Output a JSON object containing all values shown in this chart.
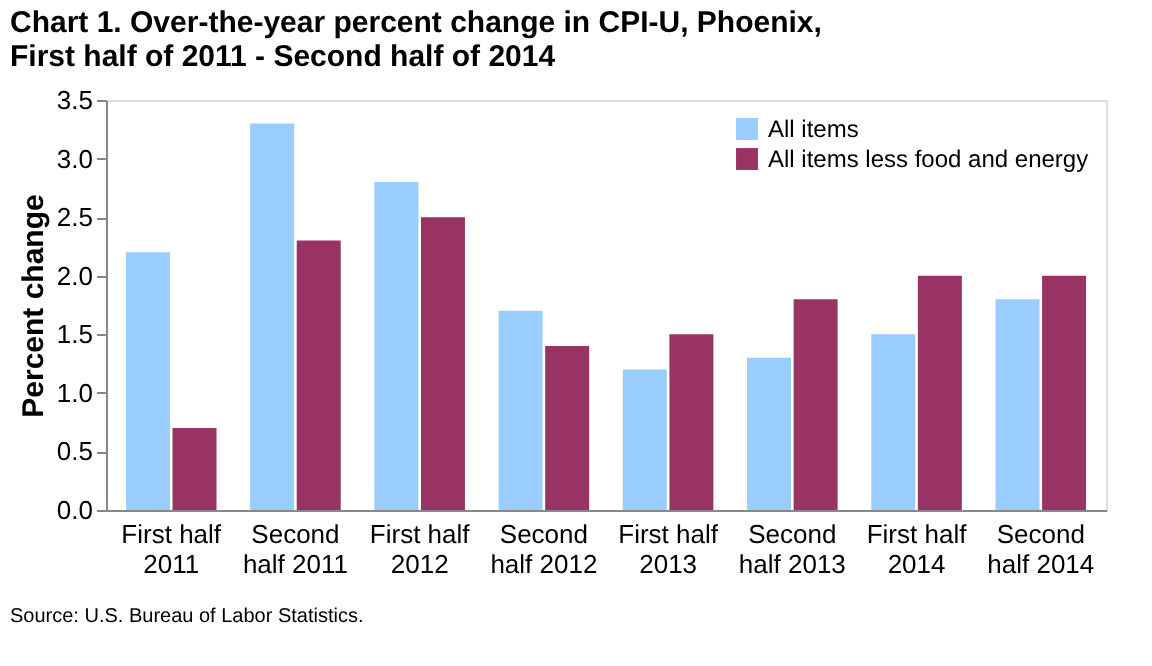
{
  "chart_data": {
    "type": "bar",
    "title": "Chart 1.  Over-the-year percent change in CPI-U, Phoenix,\nFirst half of 2011 - Second half of 2014",
    "ylabel": "Percent change",
    "categories": [
      "First half\n2011",
      "Second\nhalf 2011",
      "First half\n2012",
      "Second\nhalf 2012",
      "First half\n2013",
      "Second\nhalf 2013",
      "First half\n2014",
      "Second\nhalf 2014"
    ],
    "series": [
      {
        "name": "All items",
        "color": "#99ccff",
        "values": [
          2.2,
          3.3,
          2.8,
          1.7,
          1.2,
          1.3,
          1.5,
          1.8
        ]
      },
      {
        "name": "All items less food and energy",
        "color": "#993366",
        "values": [
          0.7,
          2.3,
          2.5,
          1.4,
          1.5,
          1.8,
          2.0,
          2.0
        ]
      }
    ],
    "ylim": [
      0,
      3.5
    ],
    "yticks": [
      {
        "value": 0,
        "label": "0.0"
      },
      {
        "value": 0.5,
        "label": "0.5"
      },
      {
        "value": 1,
        "label": "1.0"
      },
      {
        "value": 1.5,
        "label": "1.5"
      },
      {
        "value": 2,
        "label": "2.0"
      },
      {
        "value": 2.5,
        "label": "2.5"
      },
      {
        "value": 3,
        "label": "3.0"
      },
      {
        "value": 3.5,
        "label": "3.5"
      }
    ],
    "grid": false,
    "legend": "top right",
    "annotations": [
      "Source: U.S. Bureau of Labor Statistics."
    ]
  }
}
